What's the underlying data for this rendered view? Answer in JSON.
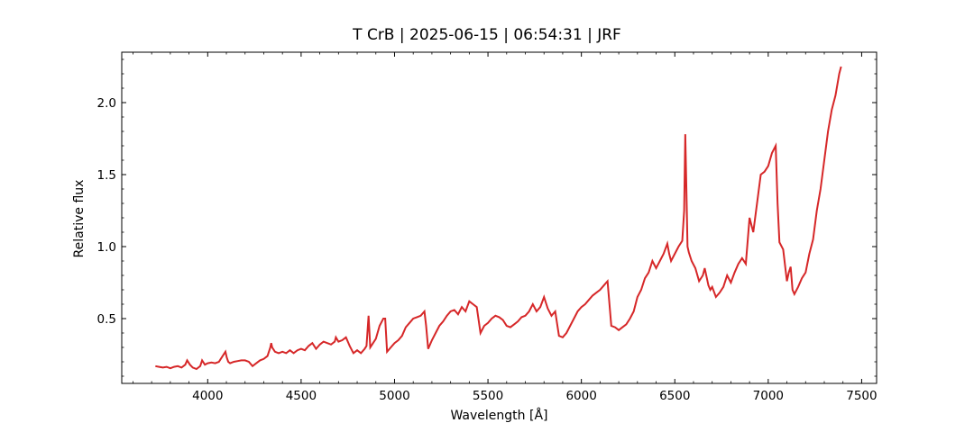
{
  "chart_data": {
    "type": "line",
    "title": "T CrB | 2025-06-15 | 06:54:31 | JRF",
    "xlabel": "Wavelength [Å]",
    "ylabel": "Relative flux",
    "xlim": [
      3540,
      7580
    ],
    "ylim": [
      0.05,
      2.35
    ],
    "xticks": [
      4000,
      4500,
      5000,
      5500,
      6000,
      6500,
      7000,
      7500
    ],
    "yticks": [
      0.5,
      1.0,
      1.5,
      2.0
    ],
    "xtick_labels": [
      "4000",
      "4500",
      "5000",
      "5500",
      "6000",
      "6500",
      "7000",
      "7500"
    ],
    "ytick_labels": [
      "0.5",
      "1.0",
      "1.5",
      "2.0"
    ],
    "grid": false,
    "series": [
      {
        "color": "#d62728",
        "x": [
          3720,
          3740,
          3760,
          3780,
          3800,
          3820,
          3840,
          3860,
          3880,
          3890,
          3905,
          3920,
          3940,
          3960,
          3970,
          3985,
          4000,
          4020,
          4040,
          4060,
          4080,
          4095,
          4102,
          4110,
          4120,
          4140,
          4160,
          4180,
          4200,
          4220,
          4240,
          4260,
          4280,
          4300,
          4320,
          4335,
          4340,
          4345,
          4360,
          4380,
          4400,
          4420,
          4440,
          4460,
          4480,
          4500,
          4520,
          4540,
          4560,
          4580,
          4600,
          4620,
          4640,
          4660,
          4680,
          4686,
          4700,
          4720,
          4740,
          4760,
          4780,
          4800,
          4820,
          4840,
          4850,
          4861,
          4870,
          4880,
          4900,
          4920,
          4940,
          4950,
          4960,
          4980,
          5000,
          5020,
          5040,
          5060,
          5080,
          5100,
          5120,
          5140,
          5160,
          5169,
          5180,
          5200,
          5220,
          5240,
          5260,
          5280,
          5300,
          5320,
          5340,
          5360,
          5380,
          5400,
          5420,
          5440,
          5460,
          5480,
          5500,
          5520,
          5540,
          5560,
          5580,
          5600,
          5620,
          5640,
          5660,
          5680,
          5700,
          5720,
          5740,
          5760,
          5780,
          5800,
          5820,
          5840,
          5860,
          5880,
          5900,
          5920,
          5940,
          5960,
          5980,
          6000,
          6020,
          6040,
          6060,
          6080,
          6100,
          6120,
          6140,
          6160,
          6180,
          6200,
          6220,
          6240,
          6260,
          6280,
          6300,
          6320,
          6340,
          6360,
          6380,
          6400,
          6420,
          6440,
          6460,
          6470,
          6480,
          6500,
          6520,
          6540,
          6550,
          6556,
          6562,
          6568,
          6575,
          6590,
          6610,
          6630,
          6650,
          6660,
          6670,
          6680,
          6690,
          6700,
          6720,
          6740,
          6760,
          6780,
          6800,
          6820,
          6840,
          6860,
          6880,
          6900,
          6920,
          6940,
          6960,
          6980,
          7000,
          7020,
          7040,
          7050,
          7060,
          7080,
          7100,
          7110,
          7120,
          7130,
          7140,
          7160,
          7180,
          7200,
          7220,
          7240,
          7260,
          7280,
          7300,
          7320,
          7340,
          7360,
          7380,
          7390
        ],
        "y": [
          0.17,
          0.165,
          0.16,
          0.165,
          0.155,
          0.165,
          0.17,
          0.16,
          0.18,
          0.21,
          0.18,
          0.16,
          0.15,
          0.17,
          0.21,
          0.18,
          0.19,
          0.195,
          0.19,
          0.2,
          0.24,
          0.27,
          0.23,
          0.2,
          0.19,
          0.2,
          0.205,
          0.21,
          0.21,
          0.2,
          0.17,
          0.19,
          0.21,
          0.22,
          0.24,
          0.3,
          0.33,
          0.3,
          0.27,
          0.26,
          0.27,
          0.26,
          0.28,
          0.26,
          0.28,
          0.29,
          0.28,
          0.31,
          0.33,
          0.29,
          0.32,
          0.34,
          0.33,
          0.32,
          0.34,
          0.37,
          0.34,
          0.35,
          0.37,
          0.31,
          0.26,
          0.28,
          0.26,
          0.29,
          0.31,
          0.52,
          0.3,
          0.32,
          0.36,
          0.45,
          0.5,
          0.5,
          0.27,
          0.3,
          0.33,
          0.35,
          0.38,
          0.44,
          0.47,
          0.5,
          0.51,
          0.52,
          0.55,
          0.45,
          0.29,
          0.35,
          0.4,
          0.45,
          0.48,
          0.52,
          0.55,
          0.56,
          0.53,
          0.58,
          0.55,
          0.62,
          0.6,
          0.58,
          0.4,
          0.45,
          0.47,
          0.5,
          0.52,
          0.51,
          0.49,
          0.45,
          0.44,
          0.46,
          0.48,
          0.51,
          0.52,
          0.55,
          0.6,
          0.55,
          0.58,
          0.65,
          0.57,
          0.52,
          0.55,
          0.38,
          0.37,
          0.4,
          0.45,
          0.5,
          0.55,
          0.58,
          0.6,
          0.63,
          0.66,
          0.68,
          0.7,
          0.73,
          0.76,
          0.45,
          0.44,
          0.42,
          0.44,
          0.46,
          0.5,
          0.55,
          0.65,
          0.7,
          0.78,
          0.82,
          0.9,
          0.85,
          0.9,
          0.95,
          1.02,
          0.95,
          0.9,
          0.95,
          1.0,
          1.04,
          1.25,
          1.78,
          1.4,
          1.0,
          0.96,
          0.9,
          0.85,
          0.76,
          0.8,
          0.85,
          0.79,
          0.73,
          0.7,
          0.72,
          0.65,
          0.68,
          0.72,
          0.8,
          0.75,
          0.82,
          0.88,
          0.92,
          0.88,
          1.2,
          1.1,
          1.3,
          1.5,
          1.52,
          1.56,
          1.65,
          1.7,
          1.3,
          1.03,
          0.98,
          0.76,
          0.82,
          0.86,
          0.7,
          0.67,
          0.72,
          0.78,
          0.82,
          0.95,
          1.05,
          1.25,
          1.4,
          1.6,
          1.8,
          1.95,
          2.05,
          2.2,
          2.25
        ]
      }
    ]
  }
}
